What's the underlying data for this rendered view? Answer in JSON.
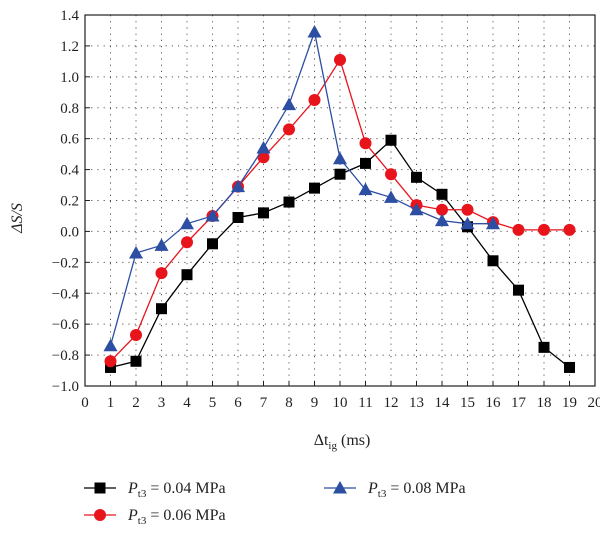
{
  "chart_data": {
    "type": "line",
    "xlabel": {
      "main": "Δt",
      "sub": "ig",
      "unit": " (ms)"
    },
    "ylabel": {
      "main": "ΔS/S"
    },
    "xlim": [
      0,
      20
    ],
    "ylim": [
      -1.0,
      1.4
    ],
    "xticks": [
      0,
      1,
      2,
      3,
      4,
      5,
      6,
      7,
      8,
      9,
      10,
      11,
      12,
      13,
      14,
      15,
      16,
      17,
      18,
      19,
      20
    ],
    "yticks": [
      -1.0,
      -0.8,
      -0.6,
      -0.4,
      -0.2,
      0.0,
      0.2,
      0.4,
      0.6,
      0.8,
      1.0,
      1.2,
      1.4
    ],
    "ytick_labels": [
      "−1.0",
      "−0.8",
      "−0.6",
      "−0.4",
      "−0.2",
      "0.0",
      "0.2",
      "0.4",
      "0.6",
      "0.8",
      "1.0",
      "1.2",
      "1.4"
    ],
    "grid": "dotted",
    "legend_placement": "bottom",
    "series": [
      {
        "name": "P_t3 = 0.04 MPa",
        "legend": {
          "main": "P",
          "sub": "t3",
          "rest": " = 0.04 MPa"
        },
        "color": "#000000",
        "marker": "square",
        "x": [
          1,
          2,
          3,
          4,
          5,
          6,
          7,
          8,
          9,
          10,
          11,
          12,
          13,
          14,
          15,
          16,
          17,
          18,
          19
        ],
        "y": [
          -0.88,
          -0.84,
          -0.5,
          -0.28,
          -0.08,
          0.09,
          0.12,
          0.19,
          0.28,
          0.37,
          0.44,
          0.59,
          0.35,
          0.24,
          0.03,
          -0.19,
          -0.38,
          -0.75,
          -0.88
        ]
      },
      {
        "name": "P_t3 = 0.06 MPa",
        "legend": {
          "main": "P",
          "sub": "t3",
          "rest": " = 0.06 MPa"
        },
        "color": "#e8141c",
        "marker": "circle",
        "x": [
          1,
          2,
          3,
          4,
          5,
          6,
          7,
          8,
          9,
          10,
          11,
          12,
          13,
          14,
          15,
          16,
          17,
          18,
          19
        ],
        "y": [
          -0.84,
          -0.67,
          -0.27,
          -0.07,
          0.1,
          0.29,
          0.48,
          0.66,
          0.85,
          1.11,
          0.57,
          0.37,
          0.17,
          0.14,
          0.14,
          0.06,
          0.01,
          0.01,
          0.01
        ]
      },
      {
        "name": "P_t3 = 0.08 MPa",
        "legend": {
          "main": "P",
          "sub": "t3",
          "rest": " = 0.08 MPa"
        },
        "color": "#2c4ea3",
        "marker": "triangle",
        "x": [
          1,
          2,
          3,
          4,
          5,
          6,
          7,
          8,
          9,
          10,
          11,
          12,
          13,
          14,
          15,
          16
        ],
        "y": [
          -0.74,
          -0.14,
          -0.09,
          0.05,
          0.1,
          0.29,
          0.54,
          0.82,
          1.29,
          0.47,
          0.27,
          0.22,
          0.14,
          0.07,
          0.05,
          0.05
        ]
      }
    ]
  }
}
